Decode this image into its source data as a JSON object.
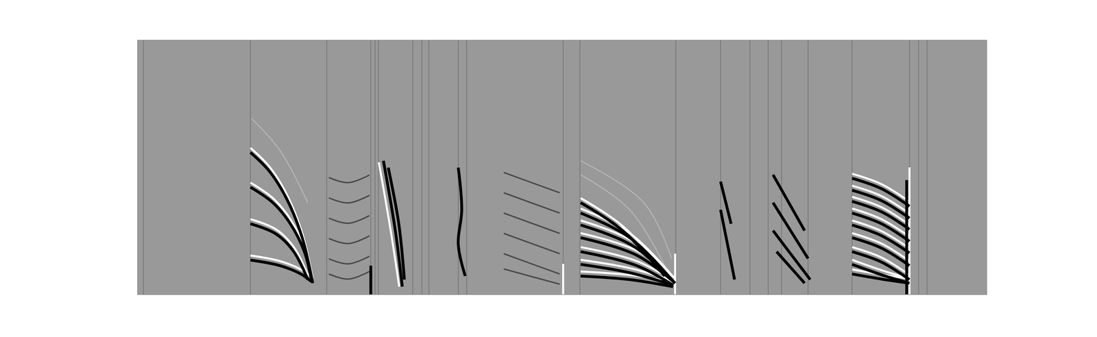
{
  "chart_data": {
    "type": "line",
    "xlim": [
      0,
      1000
    ],
    "ylim": [
      0,
      100
    ],
    "grid": false,
    "tick_labels": false,
    "series": [
      {
        "color": "#7a7a7a",
        "x": [
          6.6,
          6.6,
          null,
          132.7,
          132.7,
          null,
          222.6,
          222.6,
          null,
          274.5,
          274.5,
          null,
          279.5,
          279.5,
          null,
          283.6,
          283.6,
          null,
          324,
          324,
          null,
          334.7,
          334.7,
          null,
          343,
          343,
          null,
          377.6,
          377.6,
          null,
          387.5,
          387.5,
          null,
          501.2,
          501.2,
          null,
          521,
          521,
          null,
          634,
          634,
          null,
          686.7,
          686.7,
          null,
          721.4,
          721.4,
          null,
          742.8,
          742.8,
          null,
          758.5,
          758.5,
          null,
          789.8,
          789.8,
          null,
          841.7,
          841.7,
          null,
          909.3,
          909.3,
          null,
          920,
          920,
          null,
          930,
          930
        ],
        "values": [
          0,
          100,
          null,
          0,
          100,
          null,
          0,
          100,
          null,
          0,
          100,
          null,
          0,
          100,
          null,
          0,
          100,
          null,
          0,
          100,
          null,
          0,
          100,
          null,
          0,
          100,
          null,
          0,
          100,
          null,
          0,
          100,
          null,
          0,
          100,
          null,
          0,
          100,
          null,
          0,
          100,
          null,
          0,
          100,
          null,
          0,
          100,
          null,
          0,
          100,
          null,
          0,
          100,
          null,
          0,
          100,
          null,
          0,
          100,
          null,
          0,
          100,
          null,
          0,
          100,
          null,
          0,
          100
        ]
      },
      {
        "color": "#b4b4b4",
        "x": [
          134.4,
          167.4,
          200.3,
          null,
          521.8,
          579.6,
          620.8,
          null,
          521.8,
          596.1,
          629
        ],
        "values": [
          69.1,
          56.7,
          36.1,
          null,
          47.1,
          33.3,
          11.3,
          null,
          52.6,
          36.1,
          14.1
        ]
      },
      {
        "color": "#4a4a4a",
        "x": [
          225.1,
          248,
          272.9,
          null,
          225.1,
          248,
          272.9,
          null,
          225.1,
          248,
          272.9,
          null,
          225.1,
          248,
          272.9,
          null,
          225.1,
          248,
          272.9,
          null,
          225.1,
          248,
          272.9,
          null,
          431.2,
          464,
          497.1,
          null,
          431.2,
          464,
          497.1,
          null,
          431.2,
          464,
          497.1,
          null,
          431.2,
          464,
          497.1,
          null,
          431.2,
          464,
          497.1,
          null,
          431.2,
          464,
          497.1
        ],
        "values": [
          46,
          44,
          47,
          null,
          38,
          36,
          39,
          null,
          30,
          28,
          31,
          null,
          22,
          20,
          23,
          null,
          14,
          12,
          15,
          null,
          8,
          6,
          9,
          null,
          48,
          44,
          40,
          null,
          40,
          36,
          32,
          null,
          32,
          28,
          24,
          null,
          24,
          20,
          16,
          null,
          16,
          12,
          8,
          null,
          10,
          7,
          4
        ]
      },
      {
        "color": "#ffffff",
        "x": [
          132.7,
          155,
          175.6,
          193.7,
          206.1,
          null,
          132.7,
          159.1,
          179.7,
          196.2,
          204.5,
          null,
          132.7,
          163.2,
          183.8,
          200.3,
          null,
          132.7,
          167.4,
          192.1,
          204.5,
          null,
          284,
          298,
          308,
          null,
          521.8,
          571.3,
          620.8,
          null,
          521.8,
          579.6,
          629,
          null,
          521.8,
          583.7,
          633.1,
          null,
          521.8,
          587.8,
          633.1,
          null,
          521.8,
          587.8,
          630.7,
          null,
          521.8,
          579.6,
          630.7,
          null,
          521.8,
          579.6,
          630.7,
          null,
          841.7,
          876.3,
          909.3,
          null,
          841.7,
          876.3,
          909.3,
          null,
          841.7,
          876.3,
          909.3,
          null,
          841.7,
          876.3,
          909.3,
          null,
          841.7,
          876.3,
          909.3,
          null,
          841.7,
          876.3,
          909.3,
          null,
          841.7,
          876.3,
          909.3,
          null,
          841.7,
          876.3,
          909.3,
          null,
          841.7,
          876.3,
          909.3,
          null,
          633.1,
          633.1,
          null,
          909.3,
          909.3,
          null,
          501.2,
          501.2
        ],
        "values": [
          57.7,
          50.3,
          39.3,
          24.1,
          6.2,
          null,
          44,
          37.9,
          29.6,
          18.6,
          7.6,
          null,
          29.6,
          25.5,
          18.6,
          7.6,
          null,
          15.3,
          13.1,
          9.8,
          6.8,
          null,
          52,
          25,
          3,
          null,
          37.9,
          26.9,
          9,
          null,
          33.8,
          24.1,
          7.6,
          null,
          29.1,
          20.8,
          6.2,
          null,
          24.1,
          17.2,
          6.2,
          null,
          18.6,
          13.1,
          5.4,
          null,
          13.6,
          10.3,
          5.4,
          null,
          9,
          7.6,
          4.8,
          null,
          47.5,
          43.4,
          36.5,
          null,
          42.8,
          38.7,
          31.8,
          null,
          38.4,
          34.3,
          27.4,
          null,
          33.8,
          29.6,
          22.7,
          null,
          29.1,
          24.9,
          18.1,
          null,
          24.1,
          20,
          13.1,
          null,
          18.6,
          14.5,
          7.6,
          null,
          13.6,
          9.5,
          6.2,
          null,
          9.8,
          7.8,
          6.2,
          null,
          0,
          16,
          null,
          0,
          50,
          null,
          0,
          12
        ]
      },
      {
        "color": "#000000",
        "x": [
          132.7,
          155,
          175.6,
          193.7,
          206.1,
          null,
          132.7,
          159.1,
          179.7,
          196.2,
          204.5,
          null,
          132.7,
          163.2,
          183.8,
          200.3,
          null,
          132.7,
          167.4,
          192.1,
          204.5,
          null,
          289.4,
          303.4,
          311.6,
          null,
          295.1,
          307.5,
          314.1,
          null,
          274.5,
          274.5,
          null,
          377.6,
          381.7,
          377.6,
          385.8,
          null,
          521.8,
          571.3,
          620.8,
          null,
          521.8,
          579.6,
          629,
          null,
          521.8,
          583.7,
          633.1,
          null,
          521.8,
          587.8,
          633.1,
          null,
          521.8,
          587.8,
          630.7,
          null,
          521.8,
          579.6,
          630.7,
          null,
          521.8,
          579.6,
          630.7,
          null,
          686.7,
          703.2,
          null,
          686.7,
          699.1,
          null,
          748.5,
          785.7,
          null,
          748.5,
          789.8,
          null,
          748.5,
          792.3,
          null,
          752.7,
          785.7,
          null,
          841.7,
          876.3,
          909.3,
          null,
          841.7,
          876.3,
          909.3,
          null,
          841.7,
          876.3,
          909.3,
          null,
          841.7,
          876.3,
          909.3,
          null,
          841.7,
          876.3,
          909.3,
          null,
          841.7,
          876.3,
          909.3,
          null,
          841.7,
          876.3,
          909.3,
          null,
          841.7,
          876.3,
          909.3,
          null,
          841.7,
          876.3,
          909.3,
          null,
          906,
          906
        ],
        "values": [
          55.9,
          48.5,
          37.5,
          22.3,
          4.4,
          null,
          42.2,
          36.1,
          27.8,
          16.8,
          5.8,
          null,
          27.8,
          23.7,
          16.8,
          5.8,
          null,
          13.5,
          11.3,
          8,
          5,
          null,
          52.6,
          25.1,
          3,
          null,
          49.9,
          27.8,
          5.8,
          null,
          11.3,
          0,
          null,
          49.9,
          33.3,
          19.6,
          7.2,
          null,
          36.1,
          25.1,
          7.2,
          null,
          32,
          22.3,
          5.8,
          null,
          27.3,
          19,
          4.4,
          null,
          22.3,
          15.4,
          4.4,
          null,
          16.8,
          11.3,
          3.6,
          null,
          11.8,
          8.5,
          3.6,
          null,
          7.2,
          5.8,
          3,
          null,
          33.3,
          5.8,
          null,
          44.4,
          27.8,
          null,
          47.1,
          25.1,
          null,
          36.1,
          14.1,
          null,
          25.1,
          5.8,
          null,
          16.8,
          4.4,
          null,
          45.7,
          41.6,
          34.7,
          null,
          41,
          36.9,
          30,
          null,
          36.6,
          32.5,
          25.6,
          null,
          32,
          27.8,
          20.9,
          null,
          27.3,
          23.1,
          16.3,
          null,
          22.3,
          18.2,
          11.3,
          null,
          16.8,
          12.7,
          5.8,
          null,
          11.8,
          7.7,
          4.4,
          null,
          8,
          6,
          4.4,
          null,
          0,
          45
        ]
      }
    ]
  }
}
